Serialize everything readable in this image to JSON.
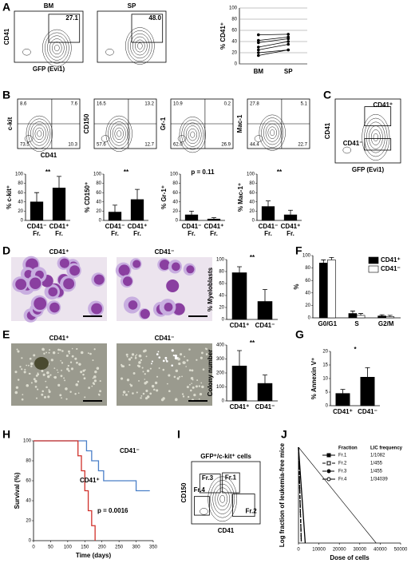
{
  "figure": {
    "panel_labels": [
      "A",
      "B",
      "C",
      "D",
      "E",
      "F",
      "G",
      "H",
      "I",
      "J"
    ],
    "flows": [
      {
        "title": "BM",
        "x_label": "GFP (Evi1)",
        "y_label": "CD41",
        "gates": [
          "27.1"
        ]
      },
      {
        "title": "SP",
        "gates": [
          "48.0"
        ]
      },
      {
        "x_label": "CD41",
        "y_label": "c-kit",
        "quadrants": [
          "8.6",
          "7.6",
          "73.5",
          "10.3"
        ]
      },
      {
        "y_label": "CD150",
        "quadrants": [
          "16.5",
          "13.2",
          "57.6",
          "12.7"
        ]
      },
      {
        "y_label": "Gr-1",
        "quadrants": [
          "10.9",
          "0.2",
          "62.0",
          "26.9"
        ]
      },
      {
        "y_label": "Mac-1",
        "quadrants": [
          "27.8",
          "5.1",
          "44.4",
          "22.7"
        ]
      },
      {
        "x_label": "GFP (Evi1)",
        "y_label": "CD41",
        "gates": [
          "CD41⁺",
          "CD41⁻"
        ]
      },
      {
        "title": "GFP⁺/c-kit⁺ cells",
        "x_label": "CD41",
        "y_label": "CD150",
        "gates": [
          "Fr.1",
          "Fr.2",
          "Fr.3",
          "Fr.4"
        ]
      }
    ],
    "images": [
      {
        "title": "CD41⁺"
      },
      {
        "title": "CD41⁻"
      },
      {
        "title": "CD41⁺"
      },
      {
        "title": "CD41⁻"
      }
    ]
  },
  "chart_data": [
    {
      "type": "paired",
      "ylabel": "% CD41⁺",
      "categories": [
        "BM",
        "SP"
      ],
      "ylim": [
        0,
        100
      ],
      "yticks": [
        0,
        20,
        40,
        60,
        80,
        100
      ],
      "grid": true,
      "color": "#000",
      "series": [
        {
          "values": [
            52,
            53
          ]
        },
        {
          "values": [
            42,
            48
          ]
        },
        {
          "values": [
            38,
            45
          ]
        },
        {
          "values": [
            30,
            40
          ]
        },
        {
          "values": [
            25,
            35
          ]
        },
        {
          "values": [
            20,
            25
          ]
        },
        {
          "values": [
            15,
            25
          ]
        }
      ]
    },
    {
      "type": "bar",
      "ylabel": "% c-kit⁺",
      "categories": [
        [
          "CD41⁻",
          "Fr."
        ],
        [
          "CD41⁺",
          "Fr."
        ]
      ],
      "values": [
        40,
        70
      ],
      "errors": [
        20,
        25
      ],
      "ylim": [
        0,
        100
      ],
      "yticks": [
        0,
        20,
        40,
        60,
        80,
        100
      ],
      "color": "#000",
      "annotation": "**"
    },
    {
      "type": "bar",
      "ylabel": "% CD150⁺",
      "categories": [
        [
          "CD41⁻",
          "Fr."
        ],
        [
          "CD41⁺",
          "Fr."
        ]
      ],
      "values": [
        18,
        45
      ],
      "errors": [
        15,
        22
      ],
      "ylim": [
        0,
        100
      ],
      "yticks": [
        0,
        20,
        40,
        60,
        80,
        100
      ],
      "color": "#000",
      "annotation": "**"
    },
    {
      "type": "bar",
      "ylabel": "% Gr-1⁺",
      "categories": [
        [
          "CD41⁻",
          "Fr."
        ],
        [
          "CD41⁺",
          "Fr."
        ]
      ],
      "values": [
        12,
        3
      ],
      "errors": [
        8,
        3
      ],
      "ylim": [
        0,
        100
      ],
      "yticks": [
        0,
        20,
        40,
        60,
        80,
        100
      ],
      "color": "#000",
      "annotation": "p = 0.11"
    },
    {
      "type": "bar",
      "ylabel": "% Mac-1⁺",
      "categories": [
        [
          "CD41⁻",
          "Fr."
        ],
        [
          "CD41⁺",
          "Fr."
        ]
      ],
      "values": [
        30,
        12
      ],
      "errors": [
        12,
        10
      ],
      "ylim": [
        0,
        100
      ],
      "yticks": [
        0,
        20,
        40,
        60,
        80,
        100
      ],
      "color": "#000",
      "annotation": "**"
    },
    {
      "type": "bar",
      "ylabel": "% Myeloblasts",
      "categories": [
        [
          "CD41⁺"
        ],
        [
          "CD41⁻"
        ]
      ],
      "values": [
        78,
        30
      ],
      "errors": [
        10,
        20
      ],
      "ylim": [
        0,
        100
      ],
      "yticks": [
        0,
        20,
        40,
        60,
        80,
        100
      ],
      "color": "#000",
      "annotation": "**"
    },
    {
      "type": "bar",
      "ylabel": "Colony number",
      "categories": [
        [
          "CD41⁺"
        ],
        [
          "CD41⁻"
        ]
      ],
      "values": [
        250,
        125
      ],
      "errors": [
        110,
        60
      ],
      "ylim": [
        0,
        400
      ],
      "yticks": [
        0,
        100,
        200,
        300,
        400
      ],
      "color": "#000",
      "annotation": "**"
    },
    {
      "type": "grouped_bar",
      "ylabel": "%",
      "categories": [
        "G0/G1",
        "S",
        "G2/M"
      ],
      "ylim": [
        0,
        100
      ],
      "yticks": [
        0,
        20,
        40,
        60,
        80,
        100
      ],
      "legend": "top-right",
      "series": [
        {
          "name": "CD41⁺",
          "color": "#000",
          "values": [
            88,
            7,
            3
          ],
          "errors": [
            5,
            4,
            2
          ]
        },
        {
          "name": "CD41⁻",
          "color": "#fff",
          "values": [
            93,
            4,
            2
          ],
          "errors": [
            4,
            3,
            2
          ]
        }
      ]
    },
    {
      "type": "bar",
      "ylabel": "% Annexin V⁺",
      "categories": [
        [
          "CD41⁺"
        ],
        [
          "CD41⁻"
        ]
      ],
      "values": [
        4.5,
        10.5
      ],
      "errors": [
        1.5,
        3.5
      ],
      "ylim": [
        0,
        20
      ],
      "yticks": [
        0,
        5,
        10,
        15,
        20
      ],
      "color": "#000",
      "annotation": "*"
    },
    {
      "type": "line",
      "ylabel": "Survival (%)",
      "xlabel": "Time (days)",
      "xlim": [
        0,
        350
      ],
      "xticks": [
        0,
        50,
        100,
        150,
        200,
        250,
        300,
        350
      ],
      "ylim": [
        0,
        100
      ],
      "yticks": [
        0,
        20,
        40,
        60,
        80,
        100
      ],
      "annotation": "p = 0.0016",
      "series": [
        {
          "name": "CD41⁻",
          "color": "#4a7fc8",
          "x": [
            0,
            155,
            155,
            170,
            170,
            190,
            190,
            205,
            205,
            300,
            300,
            340
          ],
          "values": [
            100,
            100,
            90,
            90,
            80,
            80,
            70,
            70,
            60,
            60,
            50,
            50
          ]
        },
        {
          "name": "CD41⁺",
          "color": "#d0302a",
          "x": [
            0,
            130,
            130,
            140,
            140,
            150,
            150,
            160,
            160,
            170,
            170,
            180,
            180
          ],
          "values": [
            100,
            100,
            85,
            85,
            70,
            70,
            50,
            50,
            30,
            30,
            15,
            15,
            0
          ]
        }
      ]
    },
    {
      "type": "line",
      "ylabel": "Log fraction of leukemia-free mice",
      "xlabel": "Dose of cells",
      "xlim": [
        0,
        50000
      ],
      "xticks": [
        0,
        10000,
        20000,
        30000,
        40000,
        50000
      ],
      "ylim": [
        -3,
        0
      ],
      "table_header": [
        "Fraction",
        "LIC frequency"
      ],
      "series": [
        {
          "name": "Fr.1",
          "frequency": "1/1082",
          "color": "#000",
          "style": "solid",
          "marker": "square-filled",
          "x": [
            0,
            3300
          ],
          "values": [
            0,
            -3
          ]
        },
        {
          "name": "Fr.2",
          "frequency": "1/455",
          "color": "#000",
          "style": "dashed",
          "marker": "square-open",
          "x": [
            0,
            1400
          ],
          "values": [
            0,
            -3
          ]
        },
        {
          "name": "Fr.3",
          "frequency": "1/455",
          "color": "#000",
          "style": "dashdot",
          "marker": "circle-filled",
          "x": [
            0,
            1400
          ],
          "values": [
            0,
            -3
          ]
        },
        {
          "name": "Fr.4",
          "frequency": "1/34039",
          "color": "#000",
          "style": "solid-thin",
          "marker": "circle-open",
          "x": [
            0,
            38000
          ],
          "values": [
            0,
            -3
          ]
        }
      ]
    }
  ]
}
